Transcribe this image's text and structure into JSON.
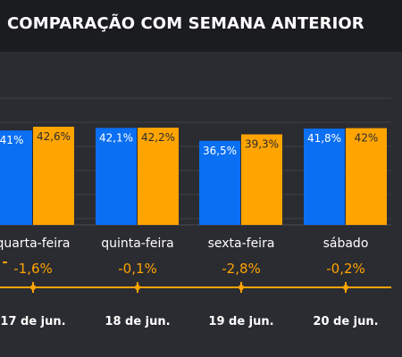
{
  "title": "COMPARAÇÃO COM SEMANA ANTERIOR",
  "colors": {
    "background": "#2b2c31",
    "title_bar": "#1b1c20",
    "current_week": "#0a6ff2",
    "previous_week": "#ffa400",
    "grid": "#3f4046",
    "text": "#ffffff",
    "change_text": "#ffa400"
  },
  "chart_data": {
    "type": "bar",
    "categories": [
      "quarta-feira",
      "quinta-feira",
      "sexta-feira",
      "sábado"
    ],
    "series": [
      {
        "values": [
          41,
          42.1,
          36.5,
          41.8
        ],
        "labels": [
          "41%",
          "42,1%",
          "36,5%",
          "41,8%"
        ],
        "color": "#0a6ff2"
      },
      {
        "values": [
          42.6,
          42.2,
          39.3,
          42
        ],
        "labels": [
          "42,6%",
          "42,2%",
          "39,3%",
          "42%"
        ],
        "color": "#ffa400"
      }
    ],
    "changes": [
      "-1,6%",
      "-0,1%",
      "-2,8%",
      "-0,2%"
    ],
    "dates": [
      "17 de jun.",
      "18 de jun.",
      "19 de jun.",
      "20 de jun."
    ],
    "ylim": [
      0,
      55
    ],
    "grid": true,
    "xlabel": "",
    "ylabel": ""
  }
}
